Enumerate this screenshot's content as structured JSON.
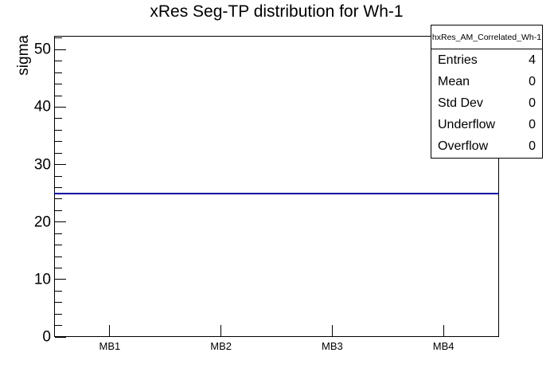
{
  "chart_data": {
    "type": "line",
    "title": "xRes Seg-TP distribution for Wh-1",
    "ylabel": "sigma",
    "xlabel": "",
    "categories": [
      "MB1",
      "MB2",
      "MB3",
      "MB4"
    ],
    "values": [
      25,
      25,
      25,
      25
    ],
    "ylim": [
      0,
      52.4
    ],
    "y_major_ticks": [
      0,
      10,
      20,
      30,
      40,
      50
    ],
    "y_minor_step": 2,
    "grid": false,
    "legend_position": "none",
    "line_color": "#0000a0",
    "axis_color": "#000000",
    "background_color": "#ffffff"
  },
  "stats_box": {
    "title": "hxRes_AM_Correlated_Wh-1",
    "rows": [
      {
        "label": "Entries",
        "value": "4"
      },
      {
        "label": "Mean",
        "value": "0"
      },
      {
        "label": "Std Dev",
        "value": "0"
      },
      {
        "label": "Underflow",
        "value": "0"
      },
      {
        "label": "Overflow",
        "value": "0"
      }
    ]
  }
}
